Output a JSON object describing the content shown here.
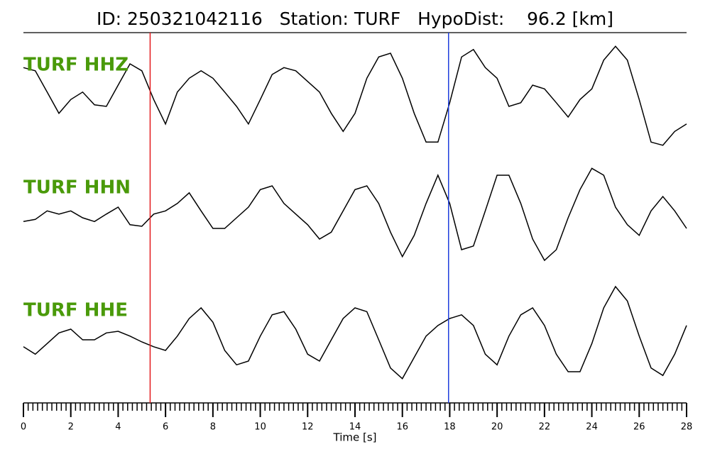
{
  "chart_data": {
    "type": "line",
    "title": "ID: 250321042116   Station: TURF   HypoDist:    96.2 [km]",
    "xlabel": "Time [s]",
    "xlim": [
      0,
      28
    ],
    "xticks": [
      0,
      2,
      4,
      6,
      8,
      10,
      12,
      14,
      16,
      18,
      20,
      22,
      24,
      26,
      28
    ],
    "xminor_step": 0.2,
    "label_color": "#4a9a0a",
    "x": [
      0,
      0.5,
      1,
      1.5,
      2,
      2.5,
      3,
      3.5,
      4,
      4.5,
      5,
      5.5,
      6,
      6.5,
      7,
      7.5,
      8,
      8.5,
      9,
      9.5,
      10,
      10.5,
      11,
      11.5,
      12,
      12.5,
      13,
      13.5,
      14,
      14.5,
      15,
      15.5,
      16,
      16.5,
      17,
      17.5,
      18,
      18.5,
      19,
      19.5,
      20,
      20.5,
      21,
      21.5,
      22,
      22.5,
      23,
      23.5,
      24,
      24.5,
      25,
      25.5,
      26,
      26.5,
      27,
      27.5,
      28
    ],
    "series": [
      {
        "name": "TURF HHZ",
        "color": "#000000",
        "values": [
          0.53,
          0.47,
          0.07,
          -0.33,
          -0.07,
          0.07,
          -0.17,
          -0.2,
          0.2,
          0.6,
          0.47,
          -0.07,
          -0.53,
          0.07,
          0.33,
          0.47,
          0.33,
          0.07,
          -0.2,
          -0.53,
          -0.07,
          0.4,
          0.53,
          0.47,
          0.27,
          0.07,
          -0.33,
          -0.67,
          -0.33,
          0.33,
          0.73,
          0.8,
          0.33,
          -0.33,
          -0.87,
          -0.87,
          -0.13,
          0.73,
          0.87,
          0.53,
          0.33,
          -0.2,
          -0.13,
          0.2,
          0.13,
          -0.13,
          -0.4,
          -0.07,
          0.13,
          0.67,
          0.93,
          0.67,
          -0.07,
          -0.87,
          -0.93,
          -0.67,
          -0.53
        ]
      },
      {
        "name": "TURF HHN",
        "color": "#000000",
        "values": [
          -0.07,
          -0.03,
          0.13,
          0.07,
          0.13,
          0,
          -0.07,
          0.07,
          0.2,
          -0.13,
          -0.16,
          0.07,
          0.13,
          0.27,
          0.47,
          0.13,
          -0.2,
          -0.2,
          0,
          0.2,
          0.53,
          0.6,
          0.27,
          0.07,
          -0.13,
          -0.4,
          -0.27,
          0.13,
          0.53,
          0.6,
          0.27,
          -0.27,
          -0.73,
          -0.33,
          0.27,
          0.8,
          0.27,
          -0.6,
          -0.53,
          0.13,
          0.8,
          0.8,
          0.27,
          -0.4,
          -0.8,
          -0.6,
          0,
          0.53,
          0.93,
          0.8,
          0.2,
          -0.13,
          -0.33,
          0.13,
          0.4,
          0.13,
          -0.2
        ]
      },
      {
        "name": "TURF HHE",
        "color": "#000000",
        "values": [
          -0.13,
          -0.27,
          -0.07,
          0.13,
          0.2,
          0,
          0,
          0.13,
          0.16,
          0.07,
          -0.04,
          -0.13,
          -0.2,
          0.07,
          0.4,
          0.6,
          0.33,
          -0.2,
          -0.47,
          -0.4,
          0.07,
          0.47,
          0.53,
          0.2,
          -0.27,
          -0.4,
          0,
          0.4,
          0.6,
          0.53,
          0,
          -0.53,
          -0.73,
          -0.33,
          0.07,
          0.27,
          0.4,
          0.47,
          0.27,
          -0.27,
          -0.47,
          0.07,
          0.47,
          0.6,
          0.27,
          -0.27,
          -0.6,
          -0.6,
          -0.07,
          0.6,
          1.0,
          0.73,
          0.07,
          -0.53,
          -0.67,
          -0.27,
          0.27
        ]
      }
    ],
    "picks": [
      {
        "x": 5.35,
        "color": "#e31a1c"
      },
      {
        "x": 17.95,
        "color": "#1f3fdd"
      }
    ]
  }
}
